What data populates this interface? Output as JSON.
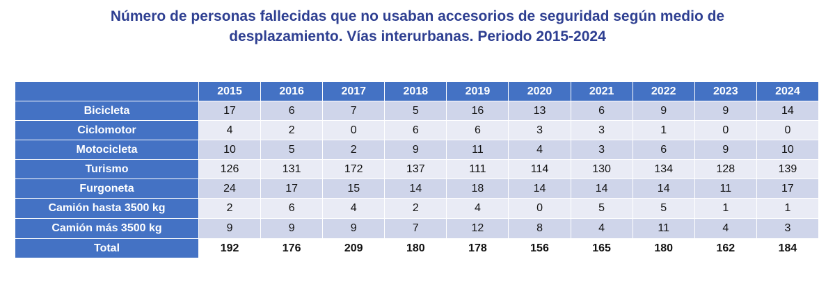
{
  "chart_data": {
    "type": "table",
    "title_line1": "Número de personas fallecidas que no usaban accesorios de seguridad según medio de",
    "title_line2": "desplazamiento. Vías interurbanas. Periodo 2015-2024",
    "columns": [
      "2015",
      "2016",
      "2017",
      "2018",
      "2019",
      "2020",
      "2021",
      "2022",
      "2023",
      "2024"
    ],
    "rows": [
      {
        "label": "Bicicleta",
        "values": [
          "17",
          "6",
          "7",
          "5",
          "16",
          "13",
          "6",
          "9",
          "9",
          "14"
        ]
      },
      {
        "label": "Ciclomotor",
        "values": [
          "4",
          "2",
          "0",
          "6",
          "6",
          "3",
          "3",
          "1",
          "0",
          "0"
        ]
      },
      {
        "label": "Motocicleta",
        "values": [
          "10",
          "5",
          "2",
          "9",
          "11",
          "4",
          "3",
          "6",
          "9",
          "10"
        ]
      },
      {
        "label": "Turismo",
        "values": [
          "126",
          "131",
          "172",
          "137",
          "111",
          "114",
          "130",
          "134",
          "128",
          "139"
        ]
      },
      {
        "label": "Furgoneta",
        "values": [
          "24",
          "17",
          "15",
          "14",
          "18",
          "14",
          "14",
          "14",
          "11",
          "17"
        ]
      },
      {
        "label": "Camión hasta 3500 kg",
        "values": [
          "2",
          "6",
          "4",
          "2",
          "4",
          "0",
          "5",
          "5",
          "1",
          "1"
        ]
      },
      {
        "label": "Camión más 3500 kg",
        "values": [
          "9",
          "9",
          "9",
          "7",
          "12",
          "8",
          "4",
          "11",
          "4",
          "3"
        ]
      },
      {
        "label": "Total",
        "values": [
          "192",
          "176",
          "209",
          "180",
          "178",
          "156",
          "165",
          "180",
          "162",
          "184"
        ]
      }
    ],
    "colors": {
      "header_bg": "#4472c4",
      "row_band_dark": "#cfd5ea",
      "row_band_light": "#e9ebf5",
      "title": "#2e3f91"
    }
  }
}
